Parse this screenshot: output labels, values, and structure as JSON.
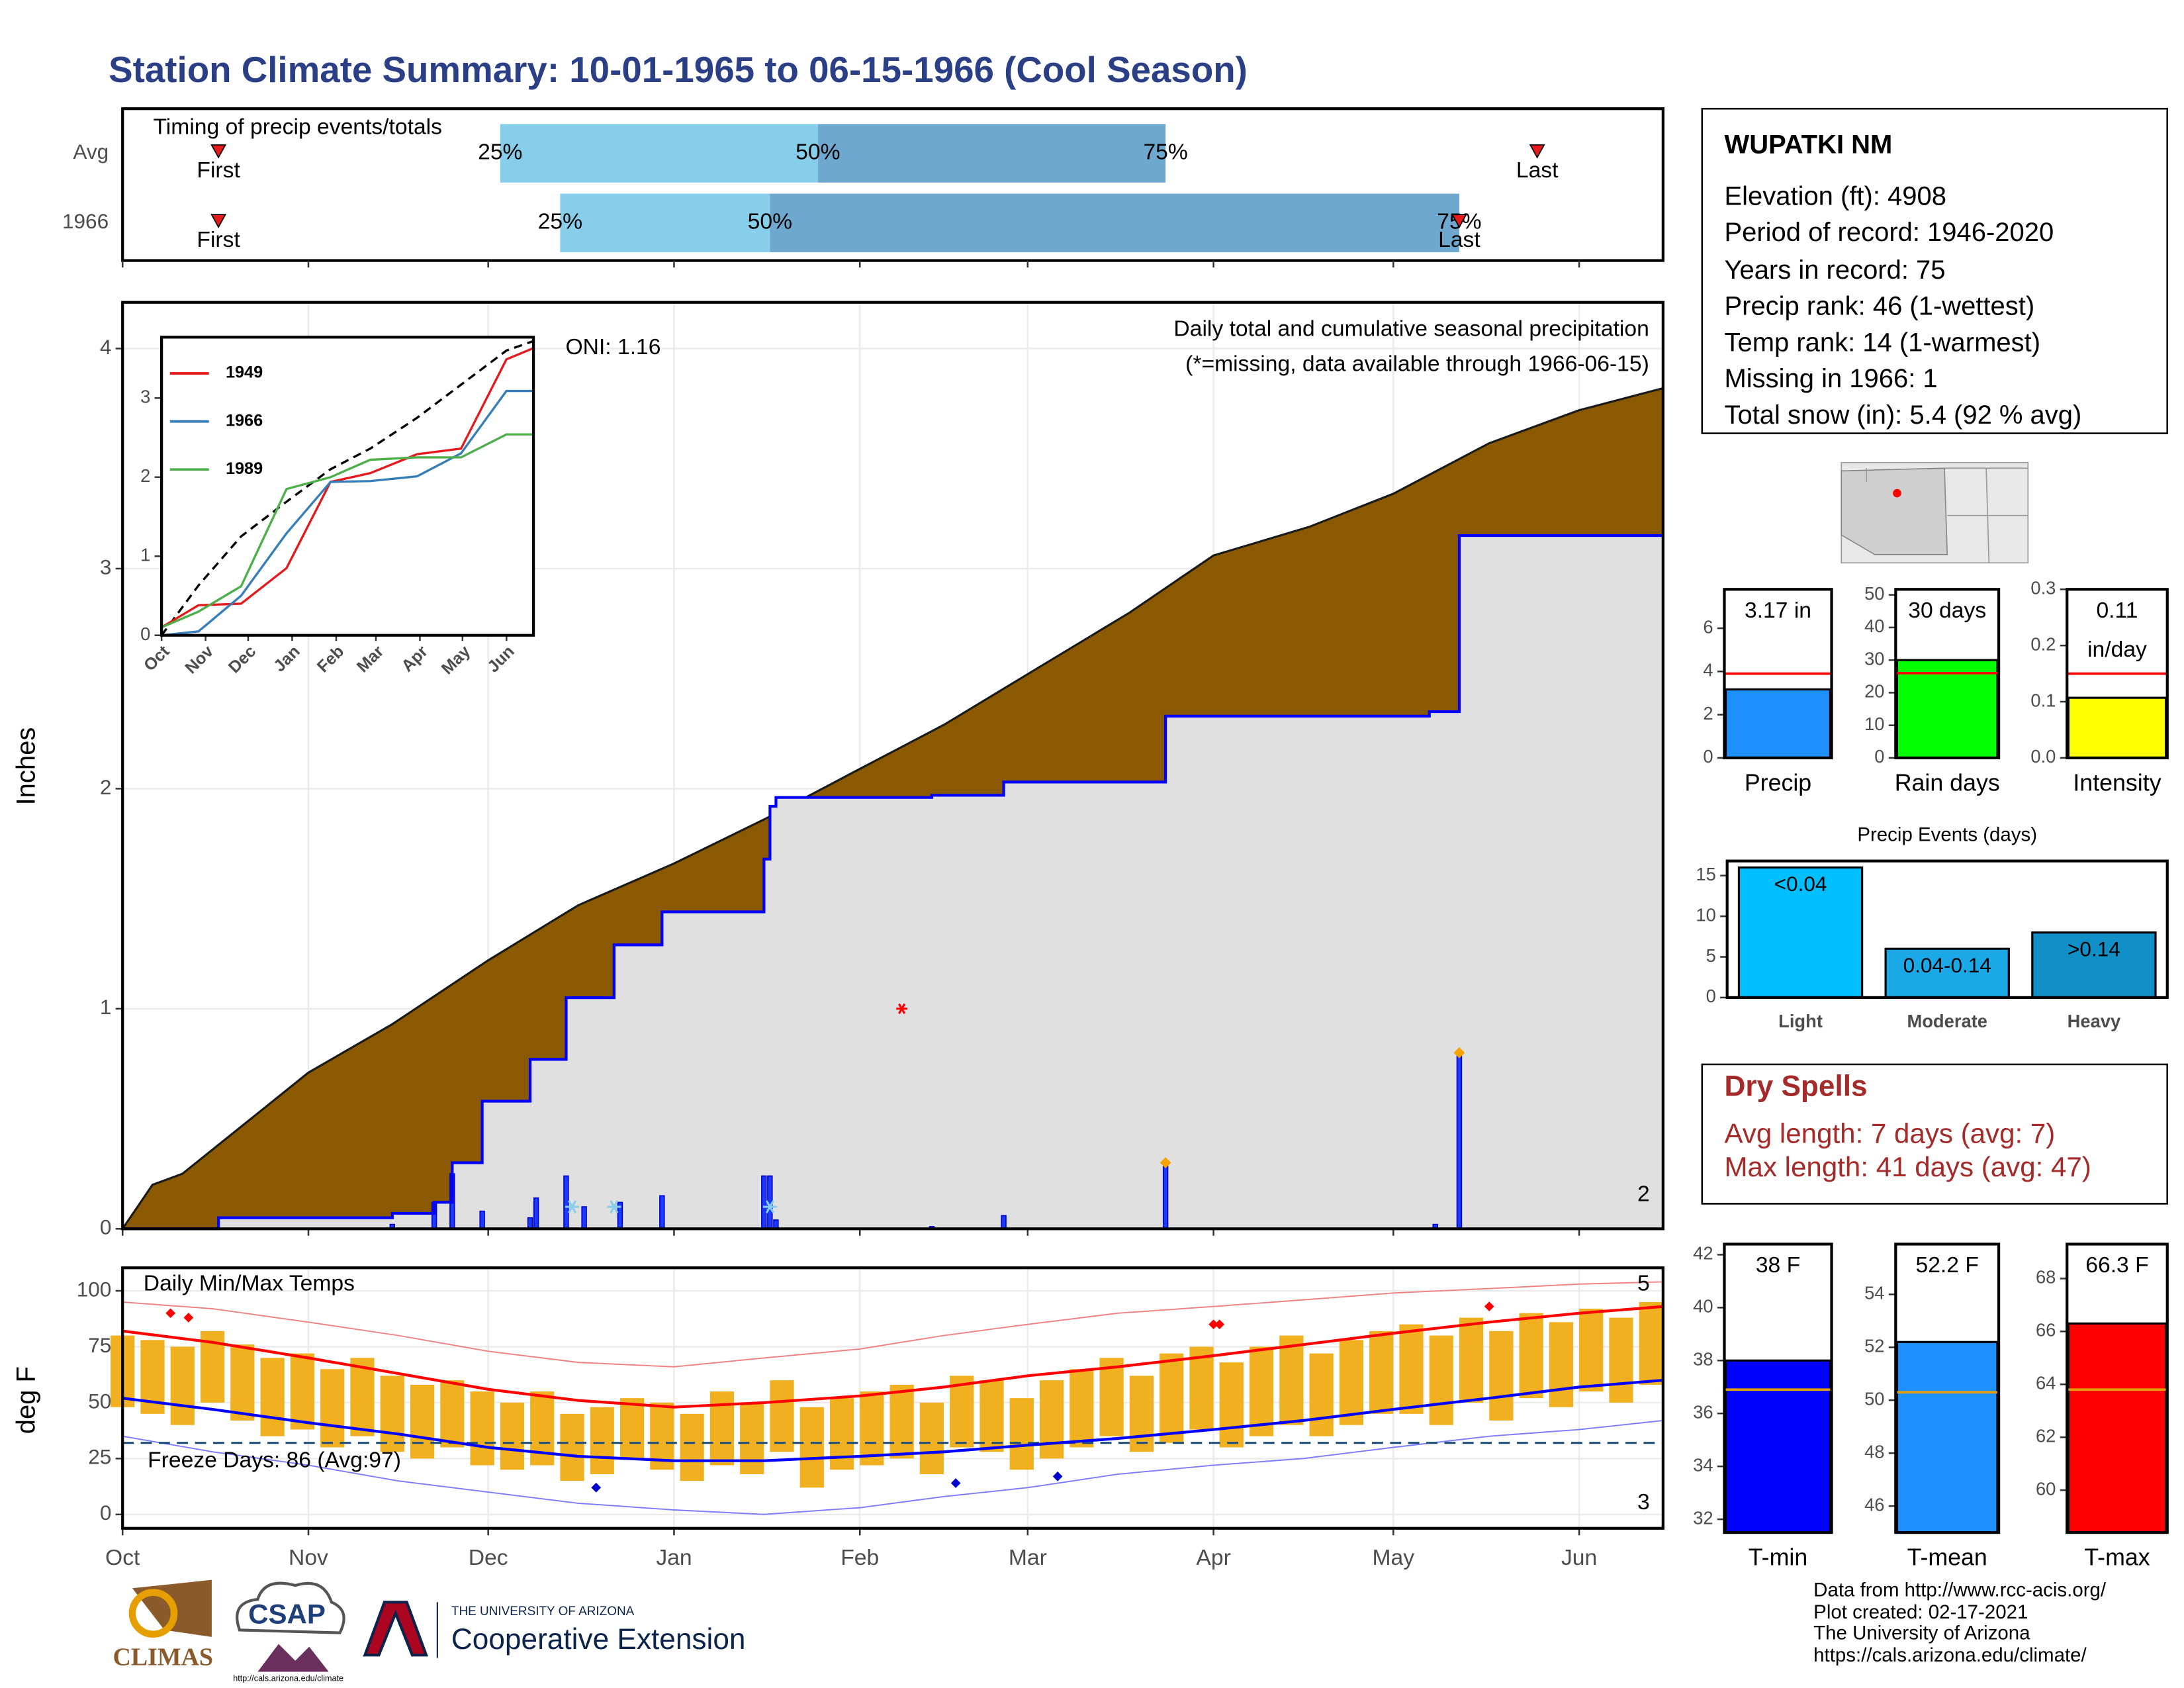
{
  "header": {
    "title": "Station Climate Summary: 10-01-1965 to 06-15-1966 (Cool Season)"
  },
  "chart_data": [
    {
      "type": "timing",
      "title": "Timing of precip events/totals",
      "xlim": [
        0,
        257
      ],
      "xticks": [
        0,
        31,
        61,
        92,
        123,
        151,
        182,
        212,
        243
      ],
      "quartile_labels": [
        "25%",
        "50%",
        "75%"
      ],
      "first_label": "First",
      "last_label": "Last",
      "colors": [
        "#87ceeb",
        "#6fa8cf"
      ],
      "marker_color": "#e41a1c",
      "rows": [
        {
          "name": "Avg",
          "quartiles": [
            63,
            116,
            174
          ],
          "first": 16,
          "last": 236
        },
        {
          "name": "1966",
          "quartiles": [
            73,
            108,
            223
          ],
          "first": 16,
          "last": 223
        }
      ]
    },
    {
      "type": "precip",
      "ylabel": "Inches",
      "xlim": [
        0,
        257
      ],
      "ylim": [
        0,
        4.21
      ],
      "yticks": [
        0,
        1,
        2,
        3,
        4
      ],
      "xticks": [
        0,
        31,
        61,
        92,
        123,
        151,
        182,
        212,
        243
      ],
      "grid": true,
      "annotation": "Daily total and cumulative seasonal precipitation",
      "note": "(*=missing, data available through 1966-06-15)",
      "oni": "ONI: 1.16",
      "average": {
        "color": "#8b5a00",
        "x": [
          0,
          5,
          10,
          31,
          45,
          61,
          76,
          92,
          107,
          123,
          137,
          151,
          168,
          182,
          198,
          212,
          228,
          243,
          257
        ],
        "values": [
          0,
          0.2,
          0.25,
          0.71,
          0.93,
          1.22,
          1.47,
          1.66,
          1.86,
          2.09,
          2.29,
          2.52,
          2.8,
          3.06,
          3.19,
          3.34,
          3.57,
          3.72,
          3.82
        ]
      },
      "season": {
        "color": "#0000ff",
        "fill": "#e0e0e0",
        "x": [
          0,
          16,
          16,
          45,
          45,
          52,
          52,
          55,
          55,
          60,
          60,
          68,
          68,
          74,
          74,
          82,
          82,
          90,
          90,
          107,
          107,
          108,
          108,
          109,
          109,
          135,
          135,
          147,
          147,
          174,
          174,
          218,
          218,
          223,
          223,
          257
        ],
        "values": [
          0,
          0,
          0.05,
          0.05,
          0.07,
          0.07,
          0.12,
          0.12,
          0.3,
          0.3,
          0.58,
          0.58,
          0.77,
          0.77,
          1.05,
          1.05,
          1.29,
          1.29,
          1.44,
          1.44,
          1.68,
          1.68,
          1.92,
          1.92,
          1.96,
          1.96,
          1.97,
          1.97,
          2.03,
          2.03,
          2.33,
          2.33,
          2.35,
          2.35,
          3.15,
          3.15
        ]
      },
      "daily": {
        "color": "#1a3cff",
        "x": [
          45,
          52,
          55,
          60,
          68,
          69,
          74,
          77,
          83,
          90,
          107,
          108,
          109,
          135,
          147,
          174,
          219,
          223
        ],
        "values": [
          0.02,
          0.12,
          0.25,
          0.08,
          0.05,
          0.14,
          0.24,
          0.1,
          0.12,
          0.15,
          0.24,
          0.24,
          0.04,
          0.01,
          0.06,
          0.3,
          0.02,
          0.8
        ]
      },
      "snow": {
        "color": "#87ceeb",
        "x": [
          75,
          82,
          108
        ],
        "values": [
          0.1,
          0.1,
          0.1
        ]
      },
      "large": {
        "color": "#f5a300",
        "x": [
          174,
          223
        ],
        "values": [
          0.3,
          0.8
        ],
        "count_label": "2"
      },
      "missing": {
        "color": "#ff0000",
        "x": [
          130
        ],
        "values": [
          1.0
        ]
      }
    },
    {
      "type": "line",
      "xlim": [
        0,
        262
      ],
      "ylim": [
        0,
        3.77
      ],
      "yticks": [
        0,
        1,
        2,
        3
      ],
      "xticks": [
        {
          "value": 0,
          "label": "Oct"
        },
        {
          "value": 31,
          "label": "Nov"
        },
        {
          "value": 61,
          "label": "Dec"
        },
        {
          "value": 92,
          "label": "Jan"
        },
        {
          "value": 123,
          "label": "Feb"
        },
        {
          "value": 151,
          "label": "Mar"
        },
        {
          "value": 182,
          "label": "Apr"
        },
        {
          "value": 212,
          "label": "May"
        },
        {
          "value": 243,
          "label": "Jun"
        }
      ],
      "x": [
        0,
        26,
        56,
        88,
        119,
        147,
        180,
        211,
        243,
        262
      ],
      "series": [
        {
          "color": "#000000",
          "dash": true,
          "values": [
            0,
            0.63,
            1.25,
            1.69,
            2.1,
            2.36,
            2.75,
            3.17,
            3.6,
            3.72
          ]
        },
        {
          "name": "1949",
          "color": "#e41a1c",
          "values": [
            0.1,
            0.38,
            0.4,
            0.85,
            1.94,
            2.05,
            2.29,
            2.36,
            3.49,
            3.63
          ]
        },
        {
          "name": "1966",
          "color": "#377eb8",
          "values": [
            0,
            0.05,
            0.5,
            1.29,
            1.94,
            1.95,
            2.01,
            2.3,
            3.09,
            3.09
          ]
        },
        {
          "name": "1989",
          "color": "#4daf4a",
          "values": [
            0.1,
            0.3,
            0.62,
            1.85,
            2.0,
            2.22,
            2.25,
            2.25,
            2.54,
            2.54
          ]
        }
      ]
    },
    {
      "type": "temps",
      "title": "Daily Min/Max Temps",
      "ylabel": "deg F",
      "xlim": [
        0,
        257
      ],
      "ylim": [
        -6.2,
        110.3
      ],
      "yticks": [
        0,
        25,
        50,
        75,
        100
      ],
      "grid": true,
      "xticks": [
        {
          "value": 0,
          "label": "Oct"
        },
        {
          "value": 31,
          "label": "Nov"
        },
        {
          "value": 61,
          "label": "Dec"
        },
        {
          "value": 92,
          "label": "Jan"
        },
        {
          "value": 123,
          "label": "Feb"
        },
        {
          "value": 151,
          "label": "Mar"
        },
        {
          "value": 182,
          "label": "Apr"
        },
        {
          "value": 212,
          "label": "May"
        },
        {
          "value": 243,
          "label": "Jun"
        }
      ],
      "bars": {
        "color": "#f0b020",
        "x": [
          0,
          5,
          10,
          15,
          20,
          25,
          30,
          35,
          40,
          45,
          50,
          55,
          60,
          65,
          70,
          75,
          80,
          85,
          90,
          95,
          100,
          105,
          110,
          115,
          120,
          125,
          130,
          135,
          140,
          145,
          150,
          155,
          160,
          165,
          170,
          175,
          180,
          185,
          190,
          195,
          200,
          205,
          210,
          215,
          220,
          225,
          230,
          235,
          240,
          245,
          250,
          255
        ],
        "max": [
          80,
          78,
          75,
          82,
          76,
          70,
          72,
          65,
          70,
          62,
          58,
          60,
          55,
          50,
          55,
          45,
          48,
          52,
          50,
          45,
          55,
          50,
          60,
          48,
          52,
          55,
          58,
          50,
          62,
          60,
          52,
          60,
          65,
          70,
          62,
          72,
          75,
          68,
          75,
          80,
          72,
          78,
          82,
          85,
          80,
          88,
          82,
          90,
          86,
          92,
          88,
          95
        ],
        "min": [
          48,
          45,
          40,
          50,
          42,
          35,
          38,
          30,
          35,
          28,
          25,
          30,
          22,
          20,
          22,
          15,
          18,
          25,
          20,
          15,
          22,
          18,
          28,
          12,
          20,
          22,
          25,
          18,
          30,
          28,
          20,
          25,
          30,
          35,
          28,
          32,
          38,
          30,
          35,
          40,
          35,
          40,
          45,
          45,
          40,
          50,
          42,
          52,
          48,
          55,
          50,
          58
        ]
      },
      "line_x": [
        0,
        15,
        31,
        46,
        61,
        76,
        92,
        107,
        123,
        137,
        151,
        166,
        182,
        197,
        212,
        228,
        243,
        257
      ],
      "record_high": {
        "color": "#f08080",
        "values": [
          95,
          92,
          86,
          80,
          73,
          68,
          66,
          70,
          74,
          80,
          85,
          90,
          93,
          96,
          99,
          101,
          103,
          104
        ]
      },
      "record_low": {
        "color": "#7b7bff",
        "values": [
          35,
          28,
          22,
          15,
          10,
          5,
          2,
          0,
          3,
          8,
          12,
          18,
          22,
          25,
          30,
          35,
          38,
          42
        ]
      },
      "normal_max": {
        "color": "#ff0000",
        "values": [
          82,
          77,
          70,
          63,
          56,
          51,
          48,
          50,
          53,
          57,
          62,
          66,
          71,
          76,
          81,
          86,
          90,
          93
        ]
      },
      "normal_min": {
        "color": "#0000ff",
        "values": [
          52,
          47,
          41,
          36,
          30,
          26,
          24,
          24,
          26,
          28,
          31,
          34,
          38,
          42,
          47,
          52,
          57,
          60
        ]
      },
      "freeze": {
        "value": 32,
        "label": "Freeze Days: 86 (Avg:97)",
        "color": "#1f4e79"
      },
      "record_highs": {
        "color": "#ff0000",
        "x": [
          8,
          11,
          182,
          183,
          228
        ],
        "values": [
          90,
          88,
          85,
          85,
          93
        ],
        "count_label": "5"
      },
      "record_lows": {
        "color": "#0000cd",
        "x": [
          79,
          139,
          156
        ],
        "values": [
          12,
          14,
          17
        ],
        "count_label": "3"
      }
    },
    {
      "type": "gauge",
      "categories": [
        "Precip"
      ],
      "values": [
        3.17
      ],
      "value_labels": [
        "3.17 in"
      ],
      "reference": 3.9,
      "color": "#1e90ff",
      "reference_color": "#ff0000",
      "ylim": [
        0,
        7.8
      ],
      "yticks": [
        0,
        2,
        4,
        6
      ]
    },
    {
      "type": "gauge",
      "categories": [
        "Rain days"
      ],
      "values": [
        30
      ],
      "value_labels": [
        "30 days"
      ],
      "reference": 26,
      "color": "#00ff00",
      "reference_color": "#ff0000",
      "ylim": [
        0,
        51.7
      ],
      "yticks": [
        0,
        10,
        20,
        30,
        40,
        50
      ]
    },
    {
      "type": "gauge",
      "categories": [
        "Intensity"
      ],
      "values": [
        0.107
      ],
      "value_labels": [
        "0.11"
      ],
      "unit_label": "in/day",
      "reference": 0.15,
      "color": "#ffff00",
      "reference_color": "#ff0000",
      "ylim": [
        0,
        0.3
      ],
      "yticks": [
        {
          "value": 0,
          "label": "0.0"
        },
        0.1,
        0.2,
        0.3
      ]
    },
    {
      "type": "bar",
      "title": "Precip Events (days)",
      "categories": [
        "Light",
        "Moderate",
        "Heavy"
      ],
      "values": [
        16,
        6,
        8
      ],
      "value_labels": [
        "<0.04",
        "0.04-0.14",
        ">0.14"
      ],
      "colors": [
        "#00bfff",
        "#1aa8e6",
        "#1190c8"
      ],
      "ylim": [
        0,
        16.8
      ],
      "yticks": [
        0,
        5,
        10,
        15
      ]
    },
    {
      "type": "gauge",
      "categories": [
        "T-min"
      ],
      "values": [
        38
      ],
      "value_labels": [
        "38 F"
      ],
      "reference": 36.9,
      "color": "#0000ff",
      "reference_color": "#e69f00",
      "ylim": [
        31.5,
        42.4
      ],
      "yticks": [
        32,
        34,
        36,
        38,
        40,
        42
      ]
    },
    {
      "type": "gauge",
      "categories": [
        "T-mean"
      ],
      "values": [
        52.2
      ],
      "value_labels": [
        "52.2 F"
      ],
      "reference": 50.3,
      "color": "#1e90ff",
      "reference_color": "#e69f00",
      "ylim": [
        45,
        55.9
      ],
      "yticks": [
        46,
        48,
        50,
        52,
        54
      ]
    },
    {
      "type": "gauge",
      "categories": [
        "T-max"
      ],
      "values": [
        66.3
      ],
      "value_labels": [
        "66.3 F"
      ],
      "reference": 63.8,
      "color": "#ff0000",
      "reference_color": "#e69f00",
      "ylim": [
        58.4,
        69.3
      ],
      "yticks": [
        60,
        62,
        64,
        66,
        68
      ]
    }
  ],
  "station": {
    "name": "WUPATKI NM",
    "lines": [
      "Elevation (ft): 4908",
      "Period of record: 1946-2020",
      "Years in record: 75",
      "Precip rank: 46 (1-wettest)",
      "Temp rank: 14 (1-warmest)",
      "Missing in 1966: 1",
      "Total snow (in): 5.4 (92 % avg)"
    ]
  },
  "dry_spells": {
    "title": "Dry Spells",
    "lines": [
      "Avg length: 7 days (avg: 7)",
      "Max length: 41 days (avg: 47)"
    ]
  },
  "footer": {
    "lines": [
      "Data from http://www.rcc-acis.org/",
      "Plot created: 02-17-2021",
      "The University of Arizona",
      "https://cals.arizona.edu/climate/"
    ]
  },
  "logos": {
    "climas": "CLIMAS",
    "csap": "CSAP",
    "csap_url": "http://cals.arizona.edu/climate",
    "university": "THE UNIVERSITY OF ARIZONA",
    "extension": "Cooperative Extension"
  }
}
